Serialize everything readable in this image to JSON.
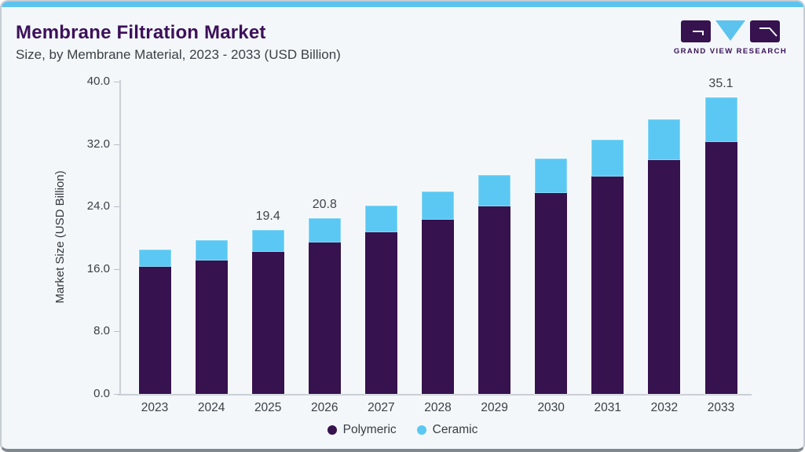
{
  "card": {
    "title": "Membrane Filtration Market",
    "subtitle": "Size, by Membrane Material, 2023 - 2033 (USD Billion)",
    "logo_text": "GRAND VIEW RESEARCH"
  },
  "colors": {
    "accent_strip": "#5cc3ee",
    "title": "#3d1059",
    "polymeric": "#36124f",
    "ceramic": "#5ac8f3",
    "background": "#f3f7fa"
  },
  "chart_data": {
    "type": "bar",
    "stacked": true,
    "title": "Membrane Filtration Market Size, by Membrane Material, 2023 - 2033 (USD Billion)",
    "xlabel": "",
    "ylabel": "Market Size (USD Billion)",
    "ylim": [
      0,
      40
    ],
    "grid": false,
    "legend_position": "bottom",
    "y_ticks": [
      "0.0",
      "8.0",
      "16.0",
      "24.0",
      "32.0",
      "40.0"
    ],
    "categories": [
      "2023",
      "2024",
      "2025",
      "2026",
      "2027",
      "2028",
      "2029",
      "2030",
      "2031",
      "2032",
      "2033"
    ],
    "series": [
      {
        "name": "Polymeric",
        "color": "#36124f",
        "values": [
          15.0,
          15.8,
          16.8,
          17.9,
          19.1,
          20.6,
          22.2,
          23.8,
          25.7,
          27.7,
          29.8
        ]
      },
      {
        "name": "Ceramic",
        "color": "#5ac8f3",
        "values": [
          2.1,
          2.4,
          2.6,
          2.9,
          3.2,
          3.4,
          3.7,
          4.1,
          4.4,
          4.8,
          5.3
        ]
      }
    ],
    "totals": [
      17.1,
      18.2,
      19.4,
      20.8,
      22.3,
      24.0,
      25.9,
      27.9,
      30.1,
      32.5,
      35.1
    ],
    "bar_labels": {
      "2025": "19.4",
      "2026": "20.8",
      "2033": "35.1"
    }
  }
}
